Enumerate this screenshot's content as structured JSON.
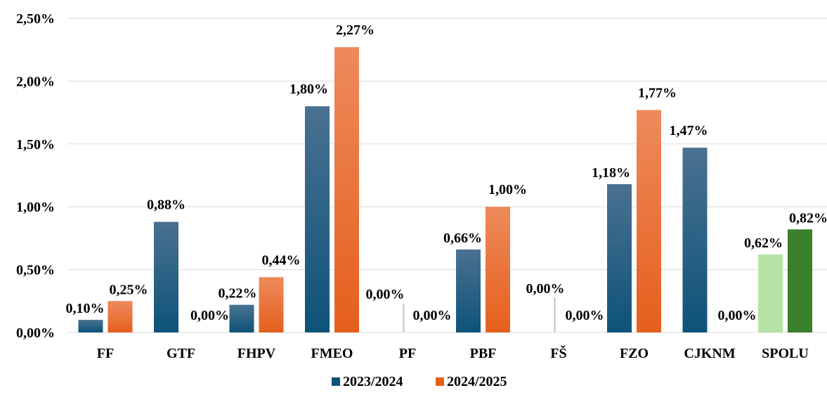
{
  "chart_data": {
    "type": "bar",
    "categories": [
      "FF",
      "GTF",
      "FHPV",
      "FMEO",
      "PF",
      "PBF",
      "FŠ",
      "FZO",
      "CJKNM",
      "SPOLU"
    ],
    "series": [
      {
        "name": "2023/2024",
        "values": [
          0.1,
          0.88,
          0.22,
          1.8,
          0.0,
          0.66,
          0.0,
          1.18,
          1.47,
          0.62
        ],
        "labels": [
          "0,10%",
          "0,88%",
          "0,22%",
          "1,80%",
          "0,00%",
          "0,66%",
          "0,00%",
          "1,18%",
          "1,47%",
          "0,62%"
        ]
      },
      {
        "name": "2024/2025",
        "values": [
          0.25,
          0.0,
          0.44,
          2.27,
          0.0,
          1.0,
          0.0,
          1.77,
          0.0,
          0.82
        ],
        "labels": [
          "0,25%",
          "0,00%",
          "0,44%",
          "2,27%",
          "0,00%",
          "1,00%",
          "0,00%",
          "1,77%",
          "0,00%",
          "0,82%"
        ]
      }
    ],
    "y_ticks": [
      "0,00%",
      "0,50%",
      "1,00%",
      "1,50%",
      "2,00%",
      "2,50%"
    ],
    "ylim": [
      0,
      2.5
    ],
    "grid": true,
    "legend": "bottom-center",
    "colors": {
      "series1_top": "#4a7191",
      "series1_bottom": "#0d5378",
      "series2_top": "#ee8a5c",
      "series2_bottom": "#e55f1c",
      "spolu1": "#b5e3a3",
      "spolu2": "#3a7f2a"
    }
  }
}
